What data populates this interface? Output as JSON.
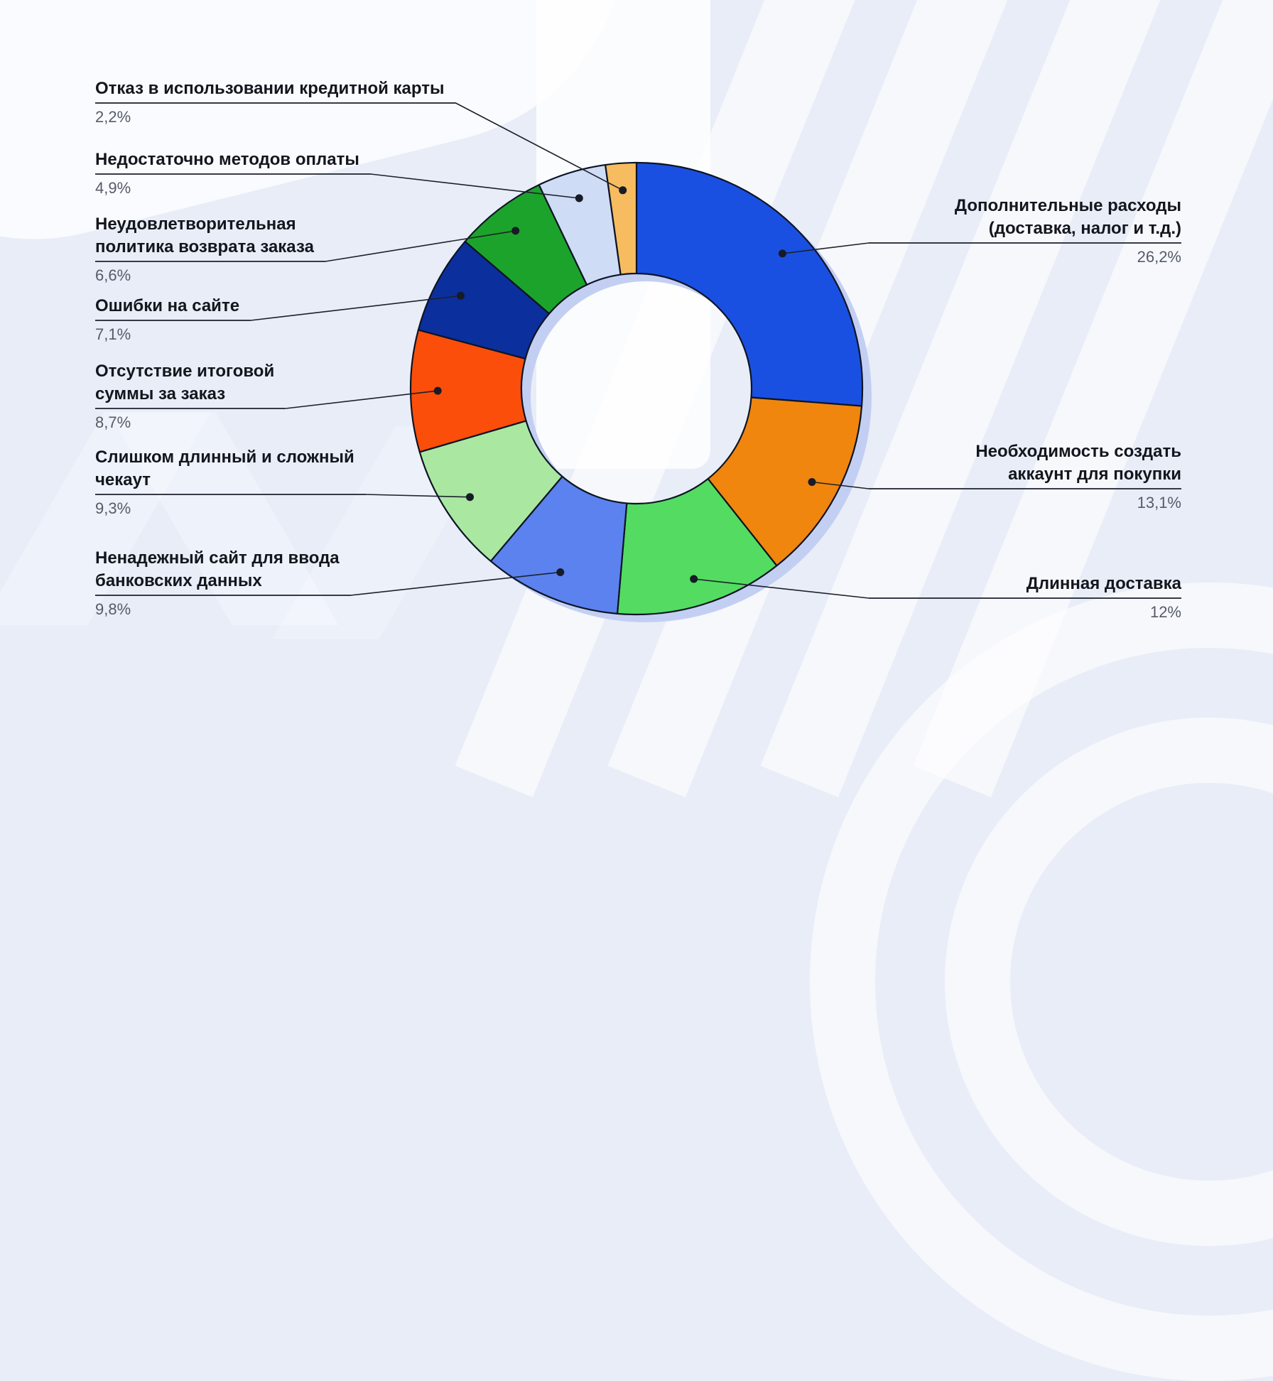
{
  "page": {
    "background_color": "#e8edf8",
    "watermark_color": "#ffffff"
  },
  "chart_data": {
    "type": "donut",
    "unit": "%",
    "decimal_separator": ",",
    "direction": "clockwise",
    "start_angle_deg": 0,
    "donut_hole_ratio": 0.51,
    "outline_color": "#0d1424",
    "shadow_color": "#c3cff2",
    "connector_color": "#1c212c",
    "segments": [
      {
        "label": "Дополнительные расходы (доставка, налог и т.д.)",
        "lines": [
          "Дополнительные расходы",
          "(доставка, налог и т.д.)"
        ],
        "value": 26.2,
        "display_value": "26,2%",
        "color": "#1a50e2",
        "side": "right"
      },
      {
        "label": "Необходимость создать аккаунт для покупки",
        "lines": [
          "Необходимость создать",
          "аккаунт для покупки"
        ],
        "value": 13.1,
        "display_value": "13,1%",
        "color": "#f0860e",
        "side": "right"
      },
      {
        "label": "Длинная доставка",
        "lines": [
          "Длинная доставка"
        ],
        "value": 12,
        "display_value": "12%",
        "color": "#53dc61",
        "side": "right"
      },
      {
        "label": "Ненадежный сайт для ввода банковских данных",
        "lines": [
          "Ненадежный сайт для ввода",
          "банковских данных"
        ],
        "value": 9.8,
        "display_value": "9,8%",
        "color": "#5b82ee",
        "side": "left"
      },
      {
        "label": "Слишком длинный и сложный чекаут",
        "lines": [
          "Слишком длинный и сложный",
          "чекаут"
        ],
        "value": 9.3,
        "display_value": "9,3%",
        "color": "#aae8a2",
        "side": "left"
      },
      {
        "label": "Отсутствие итоговой суммы за заказ",
        "lines": [
          "Отсутствие итоговой",
          "суммы за заказ"
        ],
        "value": 8.7,
        "display_value": "8,7%",
        "color": "#fb4e0a",
        "side": "left"
      },
      {
        "label": "Ошибки на сайте",
        "lines": [
          "Ошибки на сайте"
        ],
        "value": 7.1,
        "display_value": "7,1%",
        "color": "#0c2f9e",
        "side": "left"
      },
      {
        "label": "Неудовлетворительная политика возврата заказа",
        "lines": [
          "Неудовлетворительная",
          "политика возврата заказа"
        ],
        "value": 6.6,
        "display_value": "6,6%",
        "color": "#1ca32b",
        "side": "left"
      },
      {
        "label": "Недостаточно методов оплаты",
        "lines": [
          "Недостаточно методов оплаты"
        ],
        "value": 4.9,
        "display_value": "4,9%",
        "color": "#cfdcf5",
        "side": "left"
      },
      {
        "label": "Отказ в использовании кредитной карты",
        "lines": [
          "Отказ в использовании кредитной карты"
        ],
        "value": 2.2,
        "display_value": "2,2%",
        "color": "#f6bc5f",
        "side": "left"
      }
    ]
  }
}
